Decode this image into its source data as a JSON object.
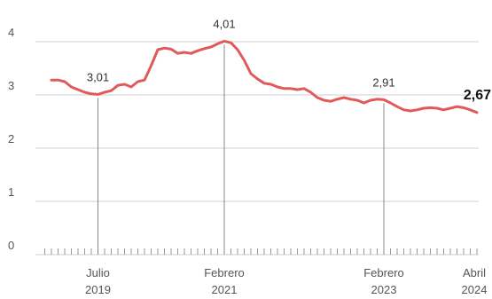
{
  "chart_data": {
    "type": "line",
    "title": "",
    "xlabel": "",
    "ylabel": "",
    "ylim": [
      0,
      4
    ],
    "yticks": [
      0,
      1,
      2,
      3,
      4
    ],
    "grid": true,
    "legend": "none",
    "line_color": "#e05a5a",
    "grid_color": "#cfcfcf",
    "x_tick_labels": [
      {
        "date": "2019-07",
        "month": "Julio",
        "year": "2019"
      },
      {
        "date": "2021-02",
        "month": "Febrero",
        "year": "2021"
      },
      {
        "date": "2023-02",
        "month": "Febrero",
        "year": "2023"
      },
      {
        "date": "2024-04",
        "month": "Abril",
        "year": "2024"
      }
    ],
    "annotations": [
      {
        "date": "2019-07",
        "value": 3.01,
        "label": "3,01"
      },
      {
        "date": "2021-02",
        "value": 4.01,
        "label": "4,01"
      },
      {
        "date": "2023-02",
        "value": 2.91,
        "label": "2,91"
      },
      {
        "date": "2024-04",
        "value": 2.67,
        "label": "2,67"
      }
    ],
    "series": [
      {
        "x": [
          "2018-12",
          "2019-01",
          "2019-02",
          "2019-03",
          "2019-04",
          "2019-05",
          "2019-06",
          "2019-07",
          "2019-08",
          "2019-09",
          "2019-10",
          "2019-11",
          "2019-12",
          "2020-01",
          "2020-02",
          "2020-03",
          "2020-04",
          "2020-05",
          "2020-06",
          "2020-07",
          "2020-08",
          "2020-09",
          "2020-10",
          "2020-11",
          "2020-12",
          "2021-01",
          "2021-02",
          "2021-03",
          "2021-04",
          "2021-05",
          "2021-06",
          "2021-07",
          "2021-08",
          "2021-09",
          "2021-10",
          "2021-11",
          "2021-12",
          "2022-01",
          "2022-02",
          "2022-03",
          "2022-04",
          "2022-05",
          "2022-06",
          "2022-07",
          "2022-08",
          "2022-09",
          "2022-10",
          "2022-11",
          "2022-12",
          "2023-01",
          "2023-02",
          "2023-03",
          "2023-04",
          "2023-05",
          "2023-06",
          "2023-07",
          "2023-08",
          "2023-09",
          "2023-10",
          "2023-11",
          "2023-12",
          "2024-01",
          "2024-02",
          "2024-03",
          "2024-04"
        ],
        "values": [
          3.28,
          3.28,
          3.25,
          3.15,
          3.1,
          3.05,
          3.02,
          3.01,
          3.05,
          3.08,
          3.18,
          3.2,
          3.15,
          3.25,
          3.28,
          3.55,
          3.85,
          3.88,
          3.86,
          3.78,
          3.8,
          3.78,
          3.83,
          3.87,
          3.9,
          3.96,
          4.01,
          3.98,
          3.85,
          3.65,
          3.4,
          3.3,
          3.22,
          3.2,
          3.15,
          3.12,
          3.12,
          3.1,
          3.12,
          3.05,
          2.95,
          2.9,
          2.88,
          2.92,
          2.95,
          2.92,
          2.9,
          2.85,
          2.9,
          2.92,
          2.91,
          2.85,
          2.78,
          2.72,
          2.7,
          2.72,
          2.75,
          2.76,
          2.75,
          2.72,
          2.75,
          2.78,
          2.76,
          2.72,
          2.67
        ]
      }
    ]
  }
}
